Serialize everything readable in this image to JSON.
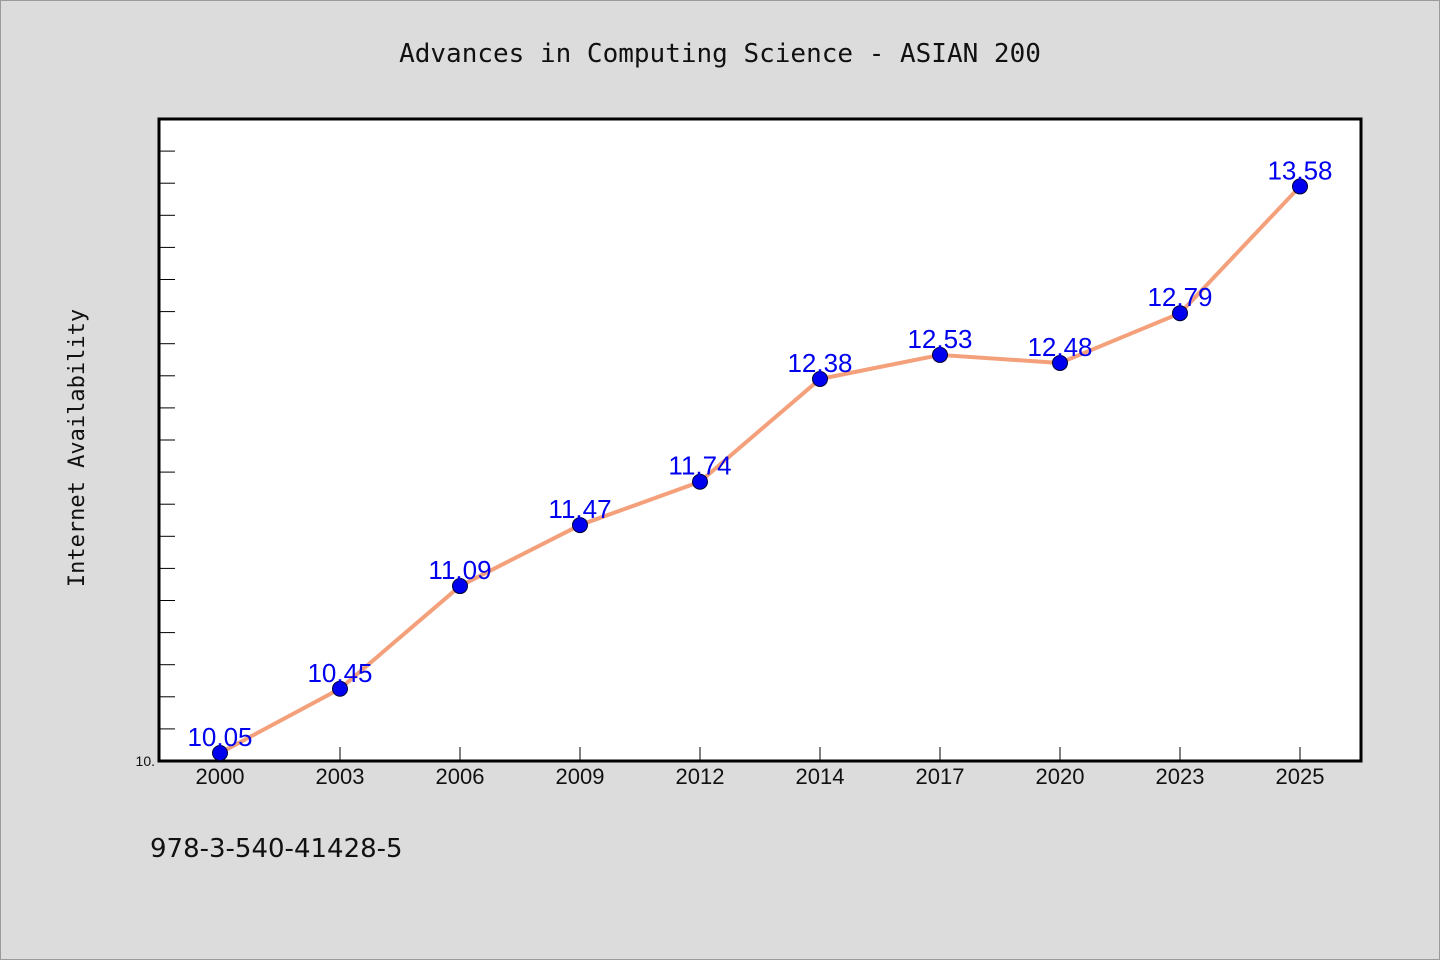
{
  "chart_data": {
    "type": "line",
    "title": "Advances in Computing Science - ASIAN 200",
    "xlabel": "",
    "ylabel": "Internet Availability",
    "categories": [
      "2000",
      "2003",
      "2006",
      "2009",
      "2012",
      "2014",
      "2017",
      "2020",
      "2023",
      "2025"
    ],
    "series": [
      {
        "values": [
          10.05,
          10.45,
          11.09,
          11.47,
          11.74,
          12.38,
          12.53,
          12.48,
          12.79,
          13.58
        ],
        "labels": [
          "10.05",
          "10.45",
          "11.09",
          "11.47",
          "11.74",
          "12.38",
          "12.53",
          "12.48",
          "12.79",
          "13.58"
        ],
        "line_color": "#f4a07a",
        "marker_color": "#0000ee"
      }
    ],
    "ylim": [
      10.0,
      14.0
    ],
    "y_tick_labels": [
      "10."
    ],
    "grid": false,
    "legend": "none"
  },
  "footnote": "978-3-540-41428-5"
}
